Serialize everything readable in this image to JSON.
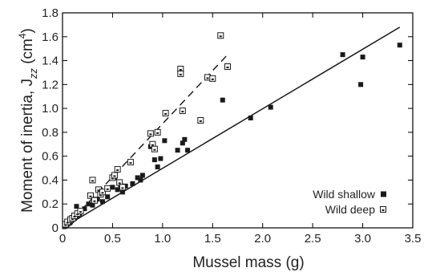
{
  "chart_data": {
    "type": "scatter",
    "xlabel": "Mussel mass (g)",
    "ylabel": "Moment of inertia, J",
    "ylabel_sub": "zz",
    "ylabel_unit_pre": " (cm",
    "ylabel_unit_sup": "4",
    "ylabel_unit_post": ")",
    "xlim": [
      0,
      3.5
    ],
    "ylim": [
      0,
      1.8
    ],
    "x_ticks": [
      "0",
      "0.5",
      "1.0",
      "1.5",
      "2.0",
      "2.5",
      "3.0",
      "3.5"
    ],
    "y_ticks": [
      "0",
      "0.2",
      "0.4",
      "0.6",
      "0.8",
      "1.0",
      "1.2",
      "1.4",
      "1.6",
      "1.8"
    ],
    "legend_position": "bottom-right",
    "colors": {
      "marker": "#1a1a1a",
      "axis": "#000000"
    },
    "series": [
      {
        "name": "Wild shallow",
        "marker": "filled-square",
        "points": [
          [
            0.02,
            0.01
          ],
          [
            0.03,
            0.02
          ],
          [
            0.04,
            0.02
          ],
          [
            0.05,
            0.03
          ],
          [
            0.06,
            0.04
          ],
          [
            0.07,
            0.04
          ],
          [
            0.08,
            0.05
          ],
          [
            0.09,
            0.06
          ],
          [
            0.1,
            0.07
          ],
          [
            0.12,
            0.08
          ],
          [
            0.13,
            0.09
          ],
          [
            0.15,
            0.1
          ],
          [
            0.17,
            0.12
          ],
          [
            0.14,
            0.18
          ],
          [
            0.22,
            0.16
          ],
          [
            0.26,
            0.2
          ],
          [
            0.3,
            0.19
          ],
          [
            0.35,
            0.24
          ],
          [
            0.4,
            0.22
          ],
          [
            0.45,
            0.26
          ],
          [
            0.5,
            0.34
          ],
          [
            0.52,
            0.42
          ],
          [
            0.55,
            0.32
          ],
          [
            0.58,
            0.36
          ],
          [
            0.6,
            0.3
          ],
          [
            0.63,
            0.35
          ],
          [
            0.7,
            0.37
          ],
          [
            0.75,
            0.42
          ],
          [
            0.78,
            0.4
          ],
          [
            0.8,
            0.44
          ],
          [
            0.88,
            0.68
          ],
          [
            0.92,
            0.57
          ],
          [
            0.95,
            0.51
          ],
          [
            0.98,
            0.58
          ],
          [
            1.02,
            0.73
          ],
          [
            1.15,
            0.65
          ],
          [
            1.2,
            0.71
          ],
          [
            1.22,
            0.74
          ],
          [
            1.25,
            0.65
          ],
          [
            1.6,
            1.07
          ],
          [
            1.88,
            0.92
          ],
          [
            2.08,
            1.01
          ],
          [
            2.8,
            1.45
          ],
          [
            2.98,
            1.2
          ],
          [
            3.0,
            1.43
          ],
          [
            3.37,
            1.53
          ]
        ],
        "fit_line": {
          "style": "solid",
          "x": [
            0,
            3.37
          ],
          "y": [
            0,
            1.68
          ]
        }
      },
      {
        "name": "Wild deep",
        "marker": "open-square-dot",
        "points": [
          [
            0.03,
            0.03
          ],
          [
            0.05,
            0.05
          ],
          [
            0.08,
            0.07
          ],
          [
            0.1,
            0.08
          ],
          [
            0.12,
            0.1
          ],
          [
            0.15,
            0.12
          ],
          [
            0.18,
            0.14
          ],
          [
            0.28,
            0.27
          ],
          [
            0.3,
            0.4
          ],
          [
            0.32,
            0.23
          ],
          [
            0.36,
            0.32
          ],
          [
            0.38,
            0.28
          ],
          [
            0.4,
            0.3
          ],
          [
            0.45,
            0.33
          ],
          [
            0.5,
            0.42
          ],
          [
            0.52,
            0.44
          ],
          [
            0.55,
            0.49
          ],
          [
            0.57,
            0.38
          ],
          [
            0.6,
            0.34
          ],
          [
            0.68,
            0.55
          ],
          [
            0.88,
            0.79
          ],
          [
            0.9,
            0.7
          ],
          [
            0.92,
            0.66
          ],
          [
            0.95,
            0.8
          ],
          [
            1.03,
            0.96
          ],
          [
            1.18,
            1.33
          ],
          [
            1.18,
            1.29
          ],
          [
            1.2,
            0.98
          ],
          [
            1.38,
            0.9
          ],
          [
            1.45,
            1.26
          ],
          [
            1.5,
            1.25
          ],
          [
            1.58,
            1.61
          ],
          [
            1.65,
            1.35
          ]
        ],
        "fit_line": {
          "style": "dashed",
          "x": [
            0.02,
            1.65
          ],
          "y": [
            0,
            1.45
          ]
        }
      }
    ]
  }
}
